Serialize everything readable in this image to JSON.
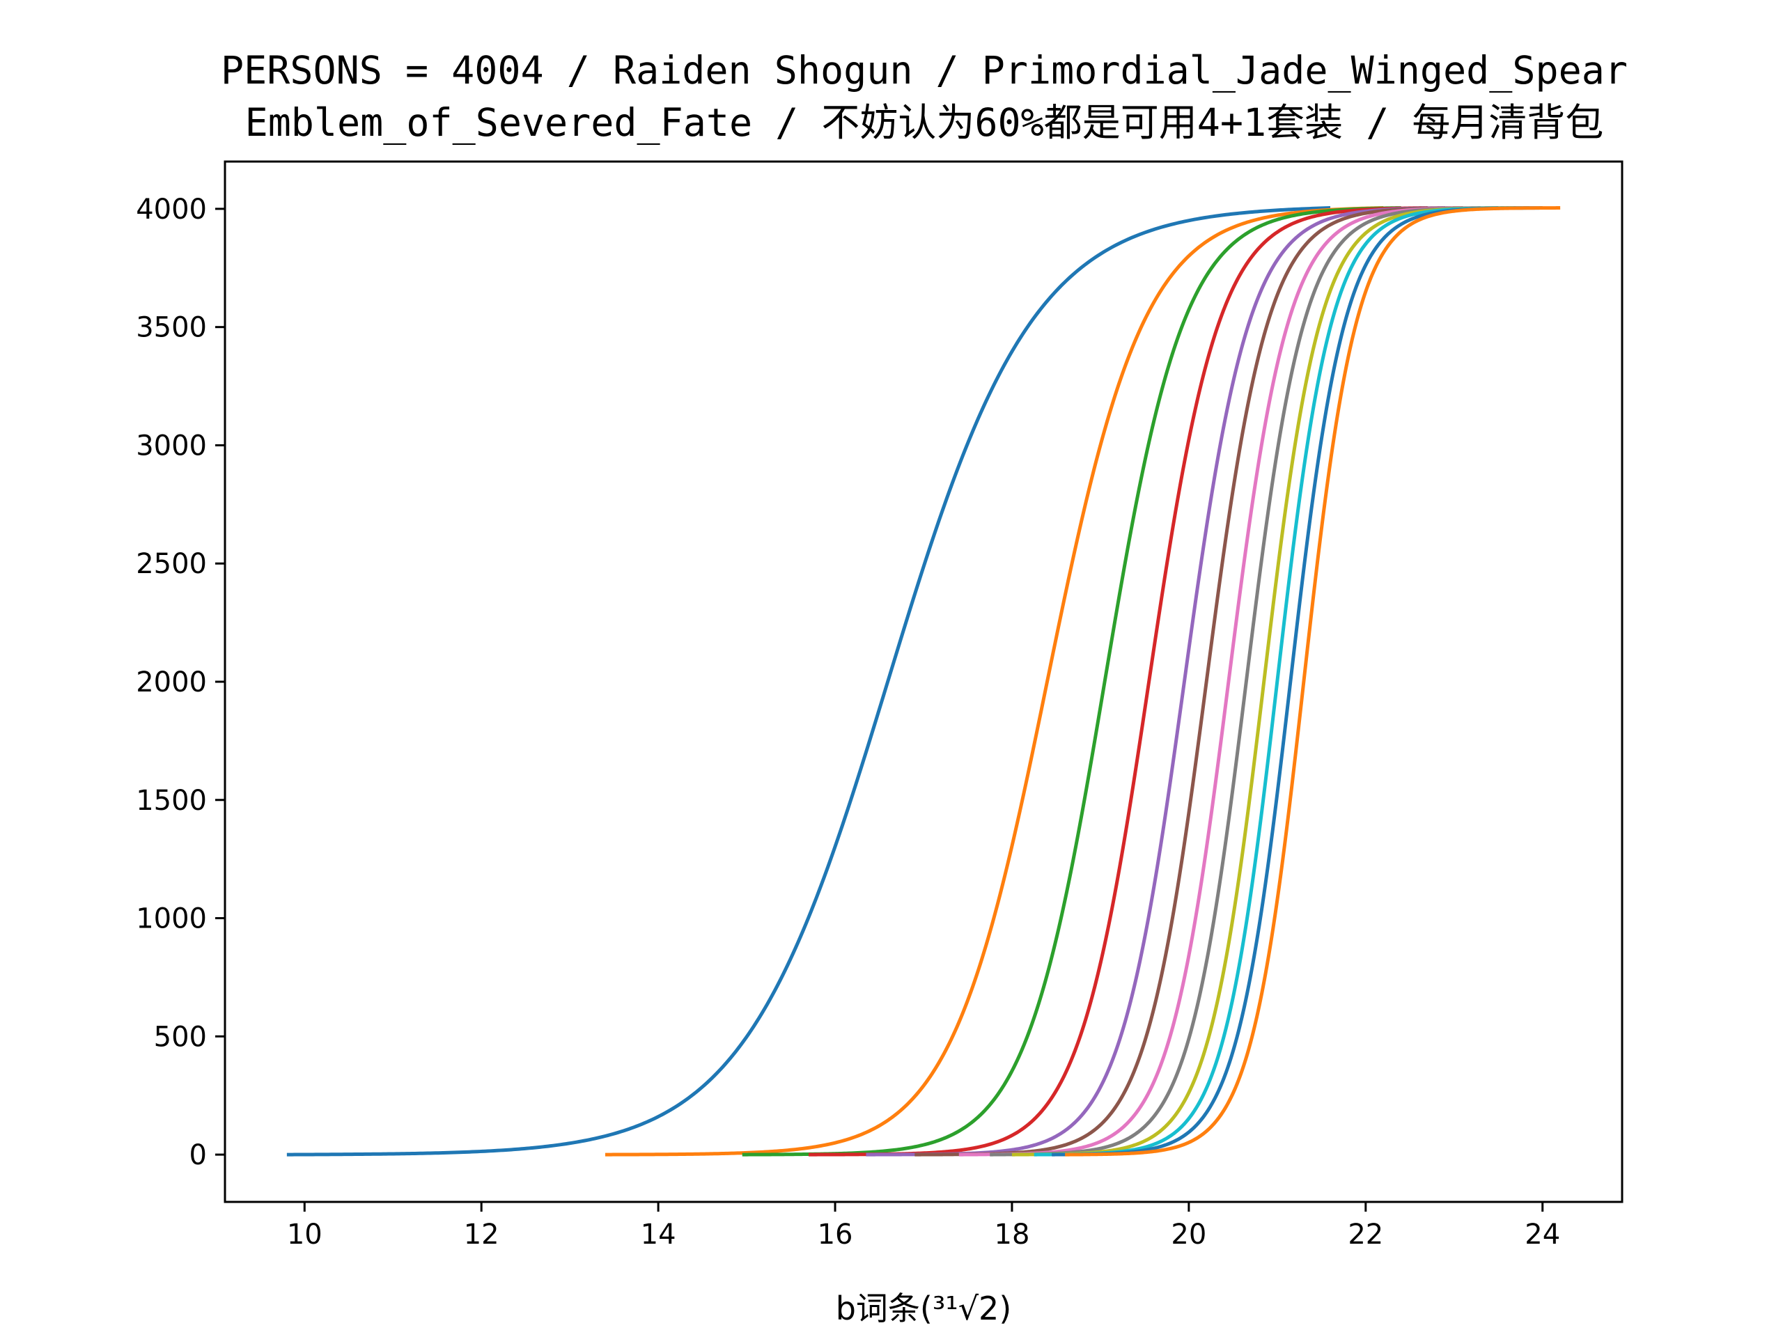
{
  "chart_data": {
    "type": "line",
    "title_lines": [
      "PERSONS = 4004 / Raiden Shogun / Primordial_Jade_Winged_Spear",
      "Emblem_of_Severed_Fate / 不妨认为60%都是可用4+1套装 / 每月清背包"
    ],
    "xlabel": "b词条(³¹√2)",
    "ylabel": "",
    "xlim": [
      9.1,
      24.9
    ],
    "ylim": [
      -200,
      4200
    ],
    "xticks": [
      10,
      12,
      14,
      16,
      18,
      20,
      22,
      24
    ],
    "yticks": [
      0,
      500,
      1000,
      1500,
      2000,
      2500,
      3000,
      3500,
      4000
    ],
    "grid": false,
    "total": 4004,
    "series": [
      {
        "color": "#1f77b4",
        "start": 9.8,
        "center": 16.6,
        "scale": 0.82,
        "end": 21.6
      },
      {
        "color": "#ff7f0e",
        "start": 13.4,
        "center": 18.4,
        "scale": 0.55,
        "end": 22.2
      },
      {
        "color": "#2ca02c",
        "start": 14.95,
        "center": 19.05,
        "scale": 0.45,
        "end": 22.4
      },
      {
        "color": "#d62728",
        "start": 15.7,
        "center": 19.55,
        "scale": 0.4,
        "end": 22.7
      },
      {
        "color": "#9467bd",
        "start": 16.35,
        "center": 19.95,
        "scale": 0.37,
        "end": 22.9
      },
      {
        "color": "#8c564b",
        "start": 16.9,
        "center": 20.2,
        "scale": 0.35,
        "end": 23.1
      },
      {
        "color": "#e377c2",
        "start": 17.4,
        "center": 20.45,
        "scale": 0.34,
        "end": 23.3
      },
      {
        "color": "#7f7f7f",
        "start": 17.75,
        "center": 20.65,
        "scale": 0.33,
        "end": 23.5
      },
      {
        "color": "#bcbd22",
        "start": 18.0,
        "center": 20.85,
        "scale": 0.32,
        "end": 23.7
      },
      {
        "color": "#17becf",
        "start": 18.25,
        "center": 21.0,
        "scale": 0.31,
        "end": 23.85
      },
      {
        "color": "#1f77b4",
        "start": 18.45,
        "center": 21.15,
        "scale": 0.31,
        "end": 24.0
      },
      {
        "color": "#ff7f0e",
        "start": 18.6,
        "center": 21.3,
        "scale": 0.3,
        "end": 24.2
      }
    ]
  }
}
